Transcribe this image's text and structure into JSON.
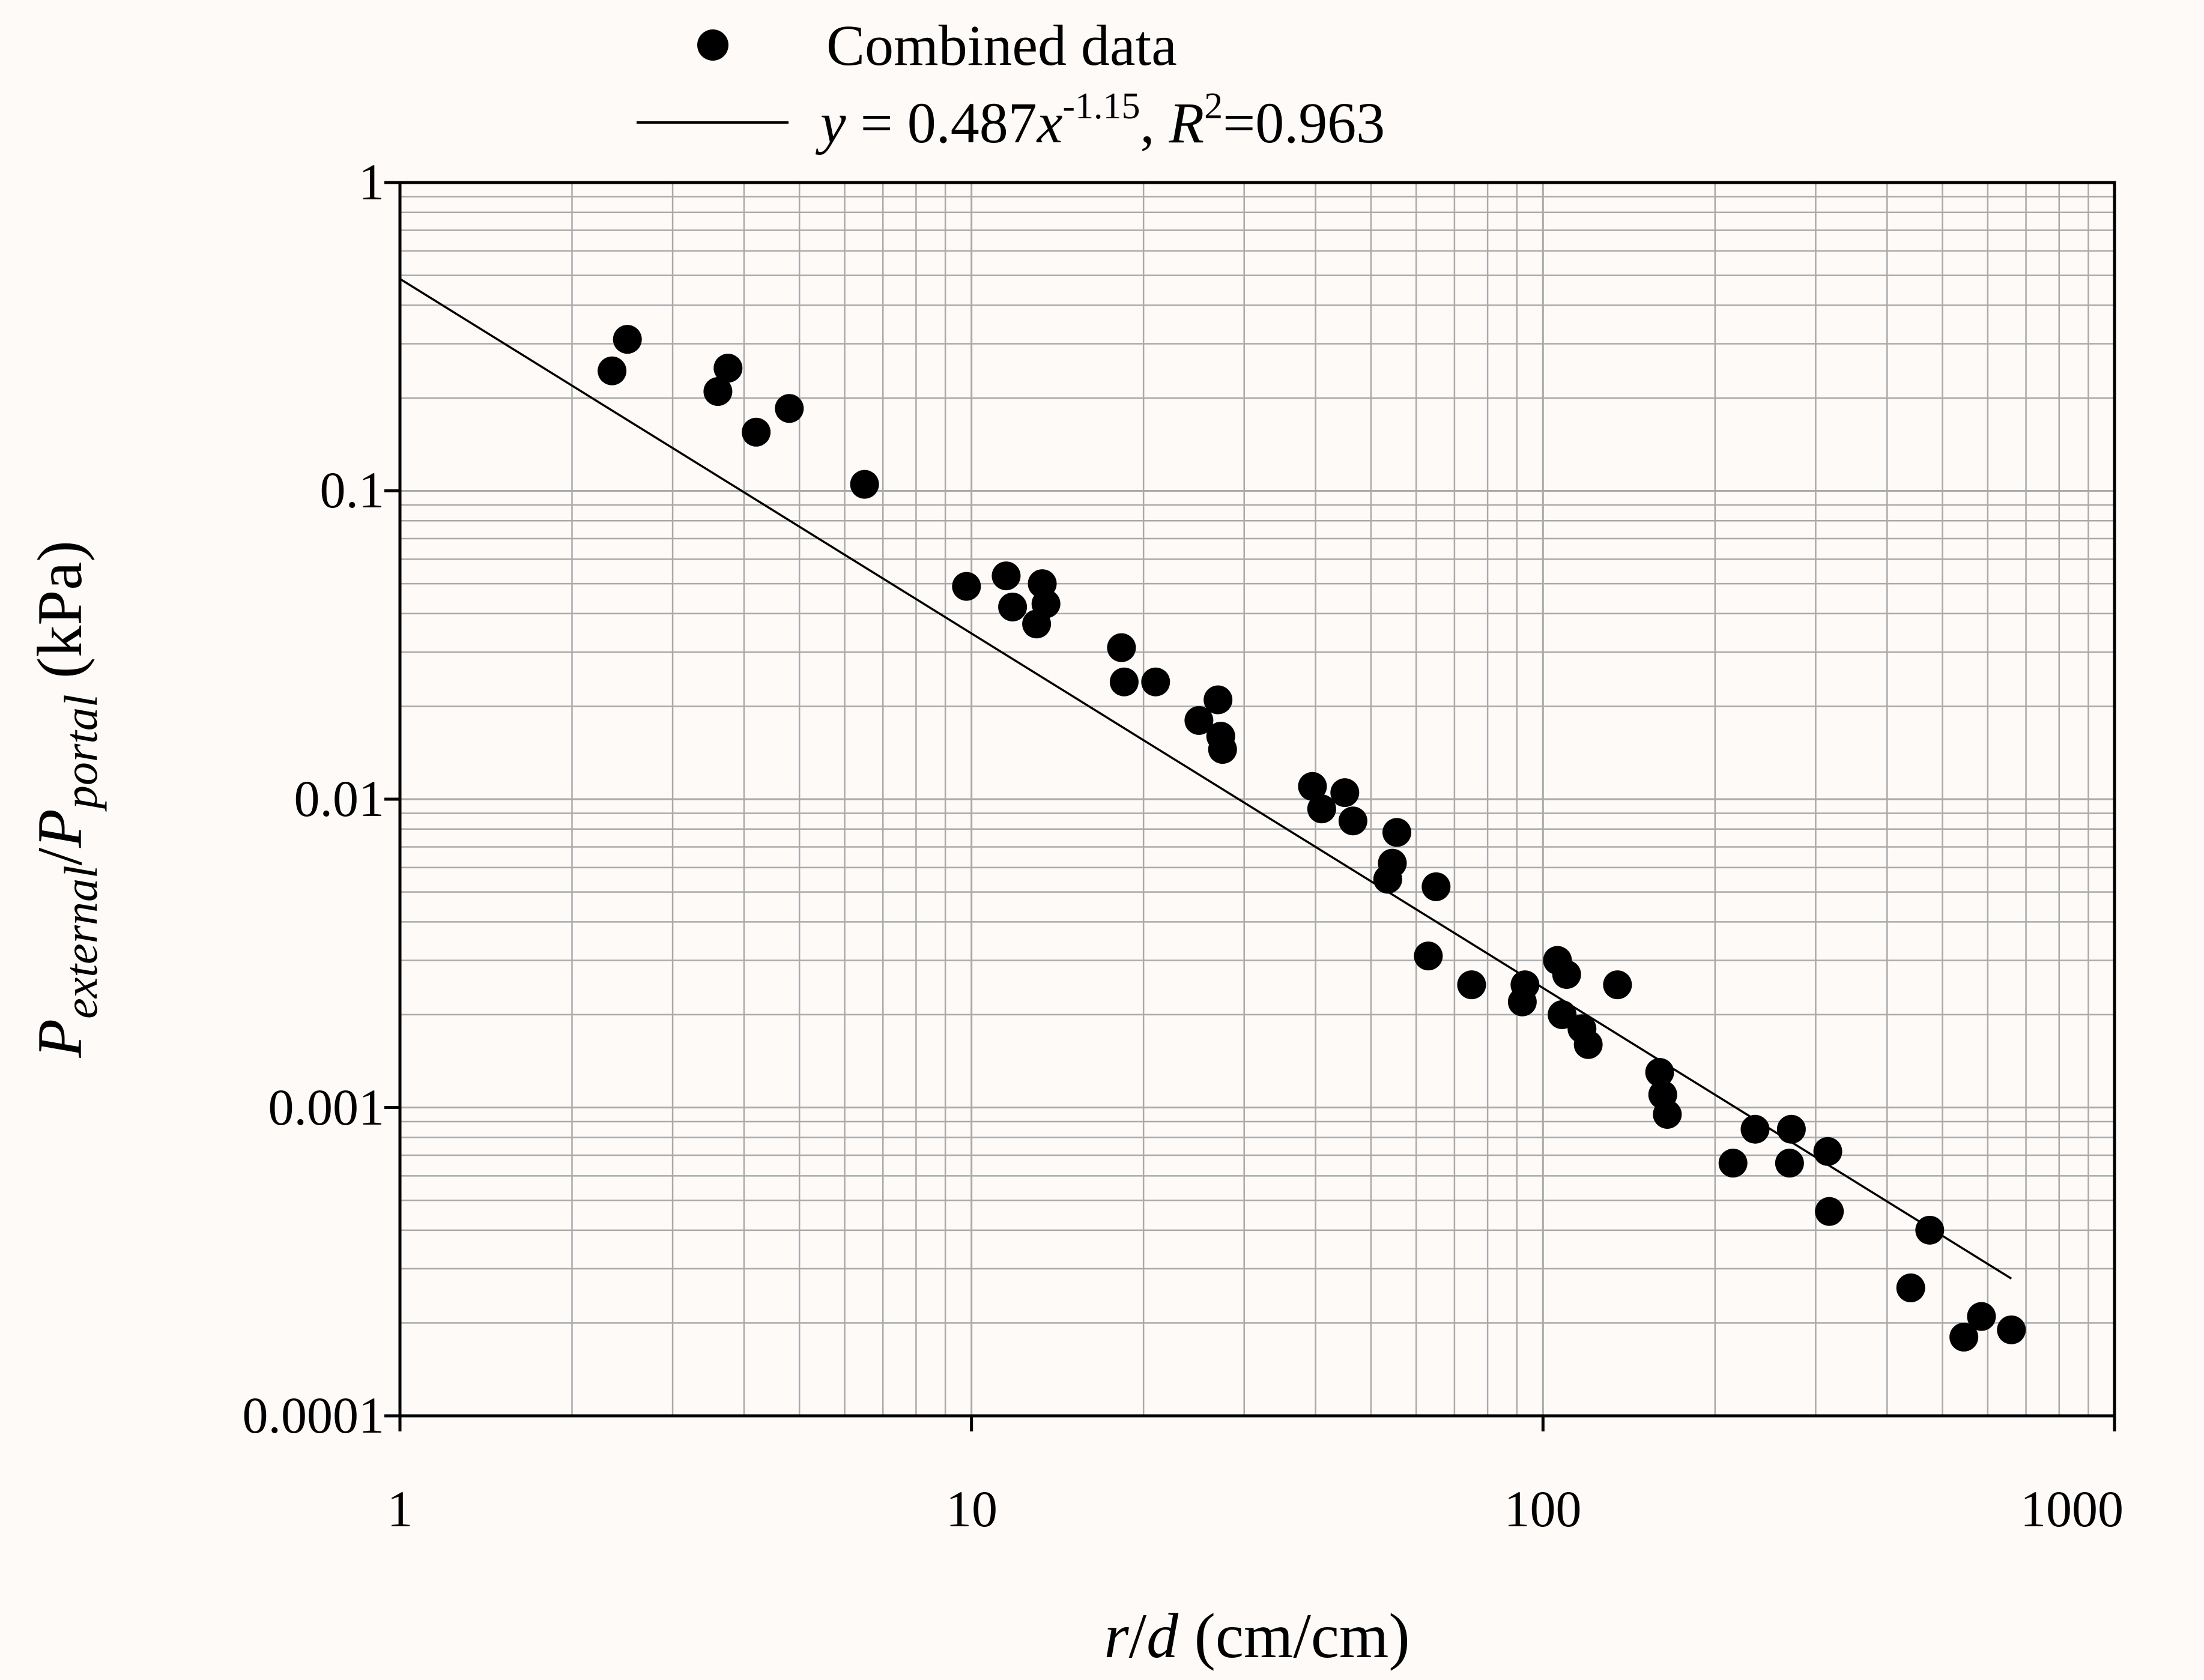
{
  "chart_data": {
    "type": "scatter",
    "scale": {
      "x": "log",
      "y": "log"
    },
    "title": "",
    "xlim": [
      1,
      1000
    ],
    "ylim": [
      0.0001,
      1
    ],
    "grid": true,
    "legend_position": "top-center",
    "xlabel": {
      "var_r": "r",
      "slash": "/",
      "var_d": "d",
      "units": " (cm/cm)"
    },
    "ylabel": {
      "P1": "P",
      "sub1": "external",
      "slash": "/",
      "P2": "P",
      "sub2": "portal",
      "units": " (kPa)"
    },
    "xticks": [
      "1",
      "10",
      "100",
      "1000"
    ],
    "xtick_values": [
      1,
      10,
      100,
      1000
    ],
    "yticks": [
      "1",
      "0.1",
      "0.01",
      "0.001",
      "0.0001"
    ],
    "ytick_values": [
      1,
      0.1,
      0.01,
      0.001,
      0.0001
    ],
    "legend": {
      "scatter_label": "Combined data",
      "fit": {
        "y": "y",
        "eq": " = 0.487",
        "x": "x",
        "exp": "-1.15",
        "comma": ", ",
        "R": "R",
        "sq": "2",
        "r2": "=0.963"
      }
    },
    "fit": {
      "a": 0.487,
      "b": -1.15,
      "x_range": [
        1,
        660
      ],
      "r_squared": 0.963
    },
    "series": [
      {
        "name": "Combined data",
        "points": [
          [
            2.35,
            0.245
          ],
          [
            2.5,
            0.31
          ],
          [
            3.6,
            0.21
          ],
          [
            3.75,
            0.25
          ],
          [
            4.2,
            0.155
          ],
          [
            4.8,
            0.185
          ],
          [
            6.5,
            0.105
          ],
          [
            9.8,
            0.049
          ],
          [
            11.5,
            0.053
          ],
          [
            11.8,
            0.042
          ],
          [
            13.0,
            0.037
          ],
          [
            13.3,
            0.05
          ],
          [
            13.5,
            0.043
          ],
          [
            18.3,
            0.031
          ],
          [
            18.5,
            0.024
          ],
          [
            21.0,
            0.024
          ],
          [
            25.0,
            0.018
          ],
          [
            27.0,
            0.021
          ],
          [
            27.3,
            0.016
          ],
          [
            27.5,
            0.0145
          ],
          [
            39.5,
            0.011
          ],
          [
            41.0,
            0.0093
          ],
          [
            45.0,
            0.0105
          ],
          [
            46.5,
            0.0085
          ],
          [
            53.5,
            0.0055
          ],
          [
            54.5,
            0.0062
          ],
          [
            55.5,
            0.0078
          ],
          [
            63.0,
            0.0031
          ],
          [
            65.0,
            0.0052
          ],
          [
            75.0,
            0.0025
          ],
          [
            92.0,
            0.0022
          ],
          [
            93.0,
            0.0025
          ],
          [
            106.0,
            0.003
          ],
          [
            108.0,
            0.002
          ],
          [
            110.0,
            0.0027
          ],
          [
            117.0,
            0.0018
          ],
          [
            120.0,
            0.0016
          ],
          [
            135.0,
            0.0025
          ],
          [
            160.0,
            0.0013
          ],
          [
            162.0,
            0.0011
          ],
          [
            165.0,
            0.00095
          ],
          [
            215.0,
            0.00066
          ],
          [
            235.0,
            0.00085
          ],
          [
            270.0,
            0.00066
          ],
          [
            272.0,
            0.00085
          ],
          [
            315.0,
            0.00072
          ],
          [
            317.0,
            0.00046
          ],
          [
            440.0,
            0.00026
          ],
          [
            475.0,
            0.0004
          ],
          [
            545.0,
            0.00018
          ],
          [
            585.0,
            0.00021
          ],
          [
            660.0,
            0.00019
          ]
        ]
      }
    ]
  }
}
